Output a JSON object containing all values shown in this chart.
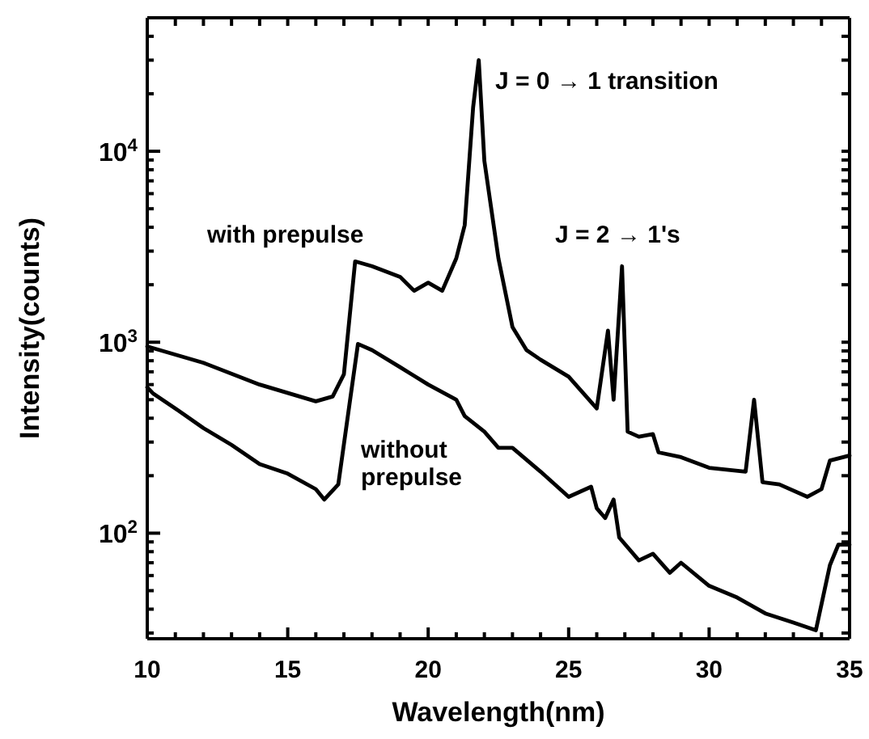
{
  "chart_data": {
    "type": "line",
    "xlabel": "Wavelength(nm)",
    "ylabel": "Intensity(counts)",
    "log": "y",
    "grid": false,
    "marker": "none",
    "line_style": "solid",
    "xlim": [
      10,
      35
    ],
    "xticks": [
      10,
      {
        "value": 11,
        "label": null
      },
      {
        "value": 12,
        "label": null
      },
      {
        "value": 13,
        "label": null
      },
      {
        "value": 14,
        "label": null
      },
      15,
      {
        "value": 16,
        "label": null
      },
      {
        "value": 17,
        "label": null
      },
      {
        "value": 18,
        "label": null
      },
      {
        "value": 19,
        "label": null
      },
      20,
      {
        "value": 21,
        "label": null
      },
      {
        "value": 22,
        "label": null
      },
      {
        "value": 23,
        "label": null
      },
      {
        "value": 24,
        "label": null
      },
      25,
      {
        "value": 26,
        "label": null
      },
      {
        "value": 27,
        "label": null
      },
      {
        "value": 28,
        "label": null
      },
      {
        "value": 29,
        "label": null
      },
      30,
      {
        "value": 31,
        "label": null
      },
      {
        "value": 32,
        "label": null
      },
      {
        "value": 33,
        "label": null
      },
      {
        "value": 34,
        "label": null
      },
      35
    ],
    "ylim": [
      28,
      50000
    ],
    "yticks": [
      {
        "value": 30,
        "label": null
      },
      {
        "value": 40,
        "label": null
      },
      {
        "value": 50,
        "label": null
      },
      {
        "value": 60,
        "label": null
      },
      {
        "value": 70,
        "label": null
      },
      {
        "value": 80,
        "label": null
      },
      {
        "value": 90,
        "label": null
      },
      {
        "value": 100,
        "label": "10$^{2}$"
      },
      {
        "value": 200,
        "label": null
      },
      {
        "value": 300,
        "label": null
      },
      {
        "value": 400,
        "label": null
      },
      {
        "value": 500,
        "label": null
      },
      {
        "value": 600,
        "label": null
      },
      {
        "value": 700,
        "label": null
      },
      {
        "value": 800,
        "label": null
      },
      {
        "value": 900,
        "label": null
      },
      {
        "value": 1000,
        "label": "10$^{3}$"
      },
      {
        "value": 2000,
        "label": null
      },
      {
        "value": 3000,
        "label": null
      },
      {
        "value": 4000,
        "label": null
      },
      {
        "value": 5000,
        "label": null
      },
      {
        "value": 6000,
        "label": null
      },
      {
        "value": 7000,
        "label": null
      },
      {
        "value": 8000,
        "label": null
      },
      {
        "value": 9000,
        "label": null
      },
      {
        "value": 10000,
        "label": "10$^{4}$"
      },
      {
        "value": 20000,
        "label": null
      },
      {
        "value": 30000,
        "label": null
      },
      {
        "value": 40000,
        "label": null
      }
    ],
    "series": [
      {
        "name": "with prepulse",
        "color": "#000000",
        "x": [
          10,
          12,
          14,
          16,
          16.6,
          17,
          17.4,
          18,
          19,
          19.5,
          20,
          20.5,
          21,
          21.3,
          21.6,
          21.8,
          22.0,
          22.5,
          23,
          23.5,
          24,
          25,
          26,
          26.4,
          26.6,
          26.9,
          27.1,
          27.5,
          28,
          28.2,
          29,
          30,
          31.3,
          31.6,
          31.9,
          32.5,
          33.5,
          34,
          34.3,
          35
        ],
        "values": [
          950,
          780,
          600,
          490,
          520,
          680,
          2650,
          2500,
          2200,
          1860,
          2050,
          1860,
          2750,
          4100,
          17000,
          30000,
          8900,
          2750,
          1200,
          910,
          810,
          660,
          450,
          1150,
          500,
          2500,
          340,
          320,
          330,
          265,
          250,
          220,
          210,
          500,
          185,
          180,
          155,
          170,
          240,
          255
        ]
      },
      {
        "name": "without\nprepulse",
        "color": "#000000",
        "x": [
          10,
          10.2,
          11,
          12,
          13,
          14,
          15,
          16,
          16.3,
          16.8,
          17.2,
          17.5,
          18,
          19,
          20,
          21,
          21.3,
          22,
          22.5,
          23,
          24,
          25,
          25.8,
          26,
          26.3,
          26.6,
          26.8,
          27.5,
          28,
          28.6,
          29,
          30,
          31,
          32,
          33,
          33.8,
          34.3,
          34.6,
          35
        ],
        "values": [
          580,
          540,
          450,
          355,
          290,
          230,
          205,
          170,
          150,
          180,
          475,
          980,
          910,
          740,
          600,
          500,
          410,
          340,
          280,
          280,
          210,
          155,
          175,
          135,
          120,
          150,
          95,
          72,
          78,
          62,
          70,
          53,
          46,
          38,
          34,
          31,
          68,
          87,
          87
        ]
      }
    ],
    "annotations": [
      "J = 0 → 1 transition",
      "J = 2 → 1's"
    ]
  }
}
